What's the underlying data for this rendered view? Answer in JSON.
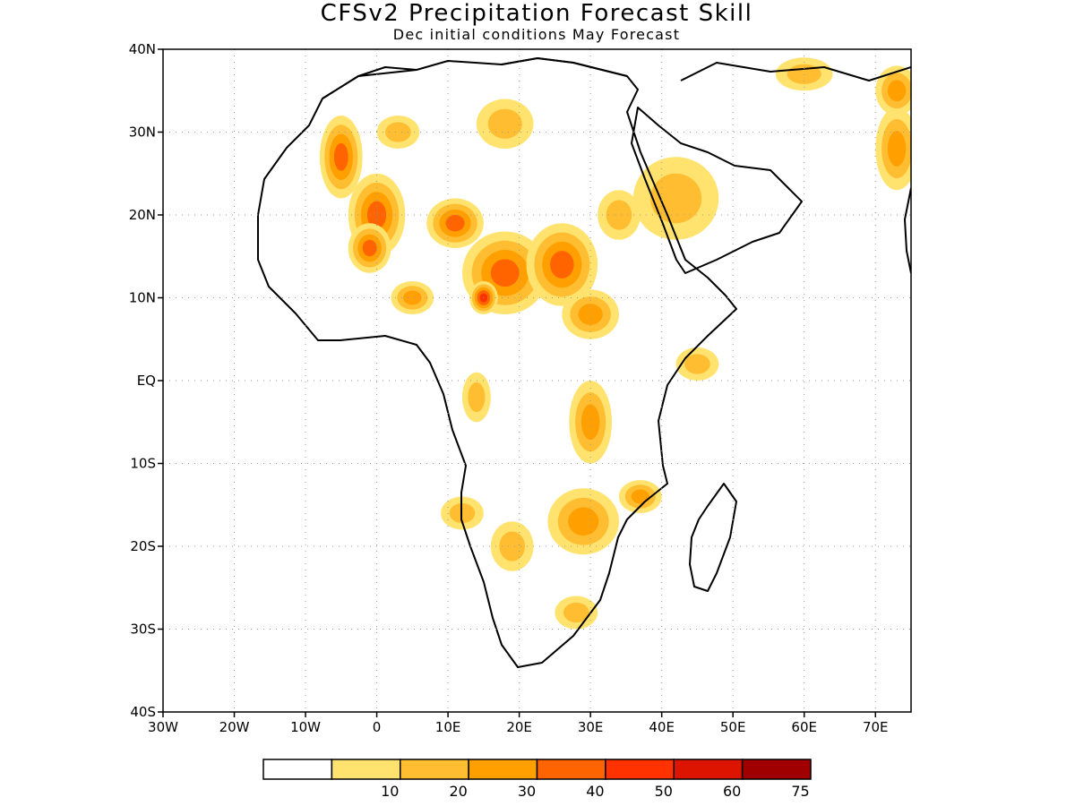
{
  "title": "CFSv2 Precipitation Forecast Skill",
  "subtitle": "Dec initial conditions  May Forecast",
  "map": {
    "lon_range": [
      -30,
      75
    ],
    "lat_range": [
      -40,
      40
    ],
    "gridlines": "dotted",
    "lat_ticks": [
      {
        "value": 40,
        "label": "40N"
      },
      {
        "value": 30,
        "label": "30N"
      },
      {
        "value": 20,
        "label": "20N"
      },
      {
        "value": 10,
        "label": "10N"
      },
      {
        "value": 0,
        "label": "EQ"
      },
      {
        "value": -10,
        "label": "10S"
      },
      {
        "value": -20,
        "label": "20S"
      },
      {
        "value": -30,
        "label": "30S"
      },
      {
        "value": -40,
        "label": "40S"
      }
    ],
    "lon_ticks": [
      {
        "value": -30,
        "label": "30W"
      },
      {
        "value": -20,
        "label": "20W"
      },
      {
        "value": -10,
        "label": "10W"
      },
      {
        "value": 0,
        "label": "0"
      },
      {
        "value": 10,
        "label": "10E"
      },
      {
        "value": 20,
        "label": "20E"
      },
      {
        "value": 30,
        "label": "30E"
      },
      {
        "value": 40,
        "label": "40E"
      },
      {
        "value": 50,
        "label": "50E"
      },
      {
        "value": 60,
        "label": "60E"
      },
      {
        "value": 70,
        "label": "70E"
      }
    ]
  },
  "colorbar": {
    "bins": [
      {
        "color": "#ffffff"
      },
      {
        "color": "#ffe36e",
        "label": "10"
      },
      {
        "color": "#ffbe32",
        "label": "20"
      },
      {
        "color": "#ffa000",
        "label": "30"
      },
      {
        "color": "#ff6400",
        "label": "40"
      },
      {
        "color": "#ff3200",
        "label": "50"
      },
      {
        "color": "#dc1400",
        "label": "60"
      },
      {
        "color": "#a00000",
        "label": "75"
      }
    ]
  },
  "skill_regions": [
    {
      "lon": -5,
      "lat": 27,
      "rx": 3,
      "ry": 5,
      "levels": [
        10,
        20,
        30,
        40
      ]
    },
    {
      "lon": 0,
      "lat": 20,
      "rx": 4,
      "ry": 5,
      "levels": [
        10,
        20,
        30,
        40
      ]
    },
    {
      "lon": -1,
      "lat": 16,
      "rx": 3,
      "ry": 3,
      "levels": [
        10,
        20,
        30,
        40
      ]
    },
    {
      "lon": 11,
      "lat": 19,
      "rx": 4,
      "ry": 3,
      "levels": [
        10,
        20,
        30,
        40
      ]
    },
    {
      "lon": 18,
      "lat": 13,
      "rx": 6,
      "ry": 5,
      "levels": [
        10,
        20,
        30,
        40
      ]
    },
    {
      "lon": 15,
      "lat": 10,
      "rx": 2,
      "ry": 2,
      "levels": [
        10,
        20,
        30,
        40,
        50
      ]
    },
    {
      "lon": 26,
      "lat": 14,
      "rx": 5,
      "ry": 5,
      "levels": [
        10,
        20,
        30,
        40
      ]
    },
    {
      "lon": 30,
      "lat": 8,
      "rx": 4,
      "ry": 3,
      "levels": [
        10,
        20,
        30
      ]
    },
    {
      "lon": 5,
      "lat": 10,
      "rx": 3,
      "ry": 2,
      "levels": [
        10,
        20,
        30
      ]
    },
    {
      "lon": 30,
      "lat": -5,
      "rx": 3,
      "ry": 5,
      "levels": [
        10,
        20,
        30
      ]
    },
    {
      "lon": 37,
      "lat": -14,
      "rx": 3,
      "ry": 2,
      "levels": [
        10,
        20,
        30
      ]
    },
    {
      "lon": 29,
      "lat": -17,
      "rx": 5,
      "ry": 4,
      "levels": [
        10,
        20,
        30
      ]
    },
    {
      "lon": 19,
      "lat": -20,
      "rx": 3,
      "ry": 3,
      "levels": [
        10,
        20
      ]
    },
    {
      "lon": 12,
      "lat": -16,
      "rx": 3,
      "ry": 2,
      "levels": [
        10,
        20
      ]
    },
    {
      "lon": 28,
      "lat": -28,
      "rx": 3,
      "ry": 2,
      "levels": [
        10,
        20
      ]
    },
    {
      "lon": 42,
      "lat": 22,
      "rx": 6,
      "ry": 5,
      "levels": [
        10,
        20
      ]
    },
    {
      "lon": 18,
      "lat": 31,
      "rx": 4,
      "ry": 3,
      "levels": [
        10,
        20
      ]
    },
    {
      "lon": 3,
      "lat": 30,
      "rx": 3,
      "ry": 2,
      "levels": [
        10,
        20
      ]
    },
    {
      "lon": 73,
      "lat": 28,
      "rx": 3,
      "ry": 5,
      "levels": [
        10,
        20,
        30
      ]
    },
    {
      "lon": 73,
      "lat": 35,
      "rx": 3,
      "ry": 3,
      "levels": [
        10,
        20,
        30
      ]
    },
    {
      "lon": 45,
      "lat": 2,
      "rx": 3,
      "ry": 2,
      "levels": [
        10,
        20
      ]
    },
    {
      "lon": 14,
      "lat": -2,
      "rx": 2,
      "ry": 3,
      "levels": [
        10,
        20
      ]
    },
    {
      "lon": 60,
      "lat": 37,
      "rx": 4,
      "ry": 2,
      "levels": [
        10,
        20
      ]
    },
    {
      "lon": 34,
      "lat": 20,
      "rx": 3,
      "ry": 3,
      "levels": [
        10,
        20
      ]
    }
  ]
}
